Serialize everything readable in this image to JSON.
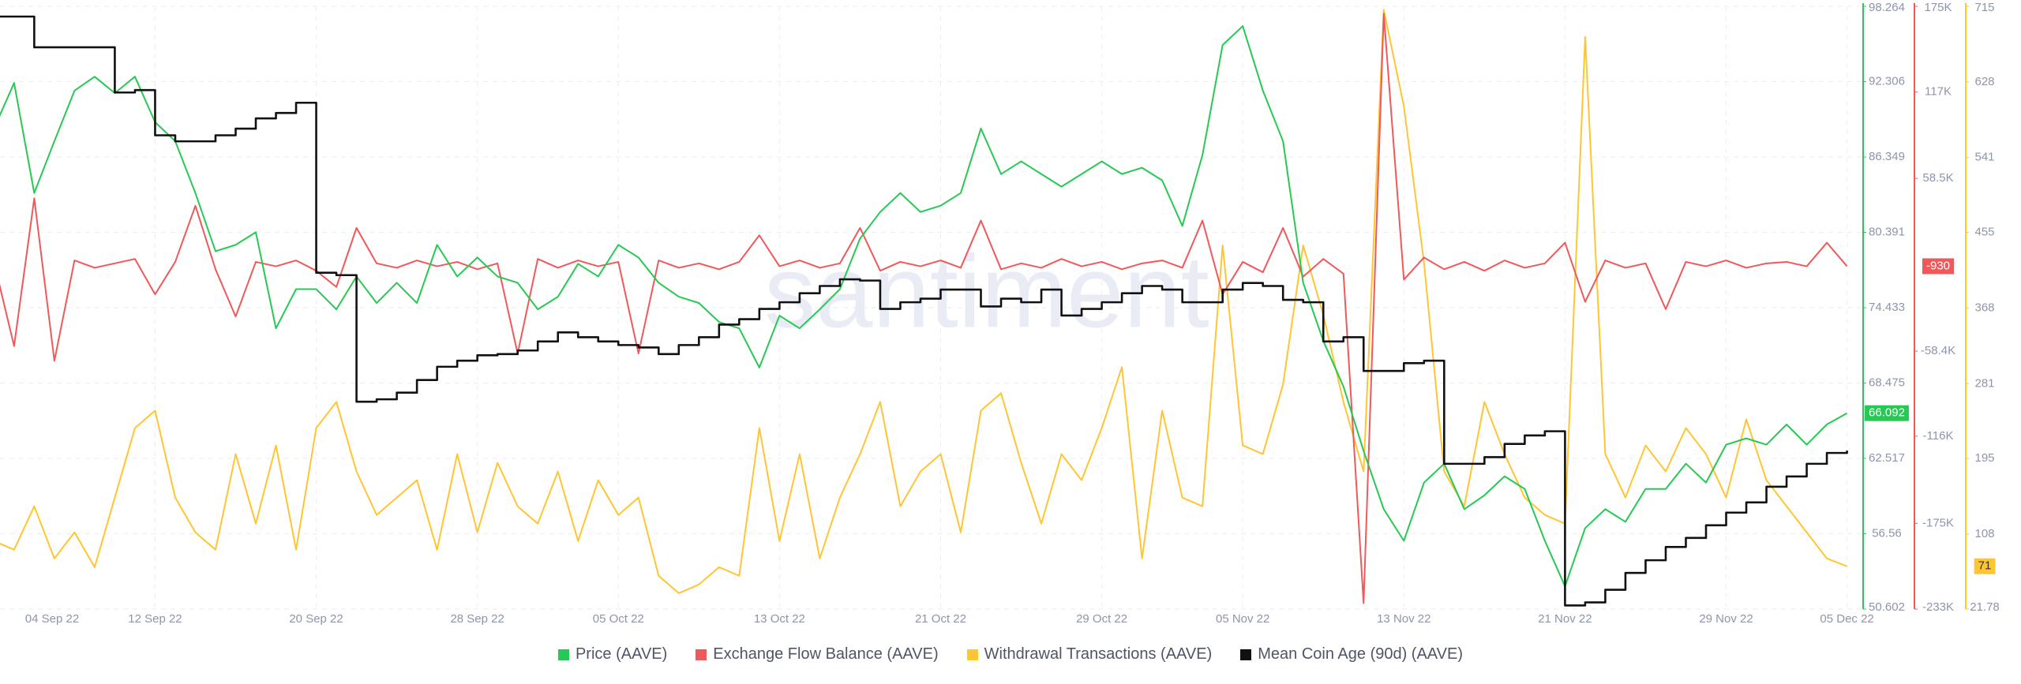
{
  "chart_data": {
    "type": "line",
    "watermark": "santiment",
    "x": [
      0,
      1,
      2,
      3,
      4,
      5,
      6,
      7,
      8,
      9,
      10,
      11,
      12,
      13,
      14,
      15,
      16,
      17,
      18,
      19,
      20,
      21,
      22,
      23,
      24,
      25,
      26,
      27,
      28,
      29,
      30,
      31,
      32,
      33,
      34,
      35,
      36,
      37,
      38,
      39,
      40,
      41,
      42,
      43,
      44,
      45,
      46,
      47,
      48,
      49,
      50,
      51,
      52,
      53,
      54,
      55,
      56,
      57,
      58,
      59,
      60,
      61,
      62,
      63,
      64,
      65,
      66,
      67,
      68,
      69,
      70,
      71,
      72,
      73,
      74,
      75,
      76,
      77,
      78,
      79,
      80,
      81,
      82,
      83,
      84,
      85,
      86,
      87,
      88,
      89,
      90,
      91,
      92
    ],
    "xlim": [
      0.3,
      92.8
    ],
    "xticks": [
      {
        "value": 0,
        "label": "04 Sep 22"
      },
      {
        "value": 8,
        "label": "12 Sep 22"
      },
      {
        "value": 16,
        "label": "20 Sep 22"
      },
      {
        "value": 24,
        "label": "28 Sep 22"
      },
      {
        "value": 31,
        "label": "05 Oct 22"
      },
      {
        "value": 39,
        "label": "13 Oct 22"
      },
      {
        "value": 47,
        "label": "21 Oct 22"
      },
      {
        "value": 55,
        "label": "29 Oct 22"
      },
      {
        "value": 62,
        "label": "05 Nov 22"
      },
      {
        "value": 70,
        "label": "13 Nov 22"
      },
      {
        "value": 78,
        "label": "21 Nov 22"
      },
      {
        "value": 86,
        "label": "29 Nov 22"
      },
      {
        "value": 92,
        "label": "05 Dec 22"
      }
    ],
    "ylim": [
      50.602,
      98.264
    ],
    "yticks": [
      50.602,
      56.56,
      62.517,
      68.475,
      74.433,
      80.391,
      86.349,
      92.306,
      98.264
    ],
    "y2lim": [
      -233000,
      175000
    ],
    "y2ticks": [
      {
        "value": -233000,
        "label": "-233K"
      },
      {
        "value": -175000,
        "label": "-175K"
      },
      {
        "value": -116000,
        "label": "-116K"
      },
      {
        "value": -58400,
        "label": "-58.4K"
      },
      {
        "value": 58500,
        "label": "58.5K"
      },
      {
        "value": 117000,
        "label": "117K"
      },
      {
        "value": 175000,
        "label": "175K"
      }
    ],
    "y3lim": [
      21.78,
      715
    ],
    "y3ticks": [
      21.78,
      108,
      195,
      281,
      368,
      455,
      541,
      628,
      715
    ],
    "y4lim": [
      0,
      100
    ],
    "grid": true,
    "series": [
      {
        "name": "Price (AAVE)",
        "color": "#26c953",
        "axis": "y",
        "values": [
          88.6,
          92.2,
          83.5,
          87.6,
          91.6,
          92.7,
          91.4,
          92.7,
          89.1,
          87.6,
          83.5,
          78.9,
          79.4,
          80.4,
          72.8,
          75.9,
          75.9,
          74.3,
          76.9,
          74.8,
          76.4,
          74.8,
          79.4,
          76.9,
          78.4,
          76.9,
          76.4,
          74.3,
          75.3,
          77.9,
          76.9,
          79.4,
          78.4,
          76.4,
          75.3,
          74.8,
          73.3,
          72.8,
          69.7,
          73.8,
          72.8,
          74.3,
          75.9,
          79.9,
          82,
          83.5,
          82,
          82.5,
          83.5,
          88.6,
          85,
          86,
          85,
          84,
          85,
          86,
          85,
          85.5,
          84.5,
          80.9,
          86.5,
          95.2,
          96.7,
          91.6,
          87.6,
          76.4,
          71.8,
          68.2,
          63.1,
          58.5,
          56,
          60.6,
          62.1,
          58.5,
          59.6,
          61.1,
          60.1,
          56,
          52.4,
          57,
          58.5,
          57.5,
          60.1,
          60.1,
          62.1,
          60.6,
          63.6,
          64.1,
          63.6,
          65.2,
          63.6,
          65.2,
          66.092
        ]
      },
      {
        "name": "Exchange Flow Balance (AAVE)",
        "color": "#f0585a",
        "axis": "y2",
        "values": [
          2000,
          -55000,
          45000,
          -65000,
          3000,
          -2000,
          1000,
          4000,
          -20000,
          2000,
          40000,
          -3000,
          -35000,
          2000,
          -1000,
          3000,
          -4000,
          -15000,
          25000,
          1000,
          -2000,
          3000,
          -1000,
          2000,
          -3000,
          1000,
          -60000,
          4000,
          -2000,
          3000,
          -1000,
          2000,
          -60000,
          3000,
          -2000,
          1000,
          -3000,
          2000,
          20000,
          -1000,
          3000,
          -2000,
          1000,
          25000,
          -4000,
          2000,
          -1000,
          3000,
          -2000,
          30000,
          -3000,
          1000,
          -2000,
          4000,
          -1000,
          2000,
          -3000,
          1000,
          3000,
          -2000,
          30000,
          -20000,
          2000,
          -5000,
          25000,
          -8000,
          4000,
          -6000,
          -229000,
          170000,
          -10000,
          5000,
          -3000,
          2000,
          -4000,
          3000,
          -2000,
          1000,
          15000,
          -25000,
          3000,
          -2000,
          1000,
          -30000,
          2000,
          -1000,
          3000,
          -2000,
          1000,
          2000,
          -1000,
          15000,
          -930
        ]
      },
      {
        "name": "Withdrawal Transactions (AAVE)",
        "color": "#ffc532",
        "axis": "y3",
        "values": [
          100,
          90,
          140,
          80,
          110,
          70,
          150,
          230,
          250,
          150,
          110,
          90,
          200,
          120,
          210,
          90,
          230,
          260,
          180,
          130,
          150,
          170,
          90,
          200,
          110,
          190,
          140,
          120,
          180,
          100,
          170,
          130,
          150,
          60,
          40,
          50,
          70,
          60,
          230,
          100,
          200,
          80,
          150,
          200,
          260,
          140,
          180,
          200,
          110,
          250,
          270,
          190,
          120,
          200,
          170,
          230,
          300,
          80,
          250,
          150,
          140,
          440,
          210,
          200,
          280,
          440,
          360,
          260,
          180,
          711,
          600,
          420,
          180,
          140,
          260,
          200,
          150,
          130,
          120,
          680,
          200,
          150,
          210,
          180,
          230,
          200,
          150,
          240,
          170,
          140,
          110,
          80,
          71
        ]
      },
      {
        "name": "Mean Coin Age (90d) (AAVE)",
        "color": "#111111",
        "axis": "y4",
        "step": true,
        "values": [
          98.3,
          98.3,
          93.2,
          93.2,
          93.2,
          93.2,
          85.7,
          86.1,
          78.6,
          77.6,
          77.6,
          78.6,
          79.7,
          81.4,
          82.3,
          84,
          55.8,
          55.4,
          34.4,
          34.8,
          35.9,
          38,
          40.2,
          41.2,
          42.1,
          42.3,
          42.9,
          44.4,
          45.9,
          45.1,
          44.4,
          43.8,
          43.4,
          42.3,
          43.8,
          45.1,
          47.2,
          48.1,
          49.8,
          50.9,
          52.4,
          53.6,
          54.7,
          54.5,
          49.8,
          50.9,
          51.5,
          53,
          53,
          50.2,
          51.5,
          50.9,
          53,
          48.7,
          49.8,
          50.9,
          52.4,
          53.6,
          53,
          50.9,
          50.9,
          53,
          54.1,
          53.6,
          51.3,
          50.9,
          44.4,
          45.1,
          39.5,
          39.5,
          40.8,
          41.2,
          24.1,
          24.1,
          25.2,
          27.4,
          28.8,
          29.5,
          0.6,
          1.1,
          3.2,
          6,
          8.1,
          10.3,
          11.8,
          13.9,
          16,
          17.7,
          20.3,
          22,
          24.1,
          25.9,
          26.3
        ]
      }
    ]
  }
}
